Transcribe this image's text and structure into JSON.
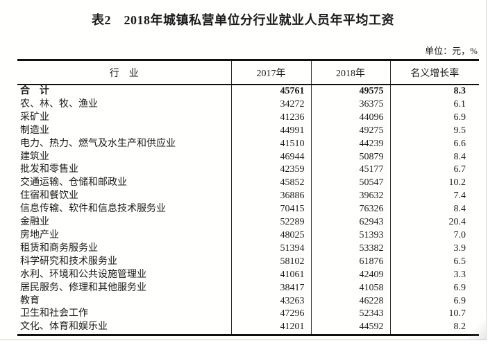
{
  "page": {
    "title": "表2　2018年城镇私营单位分行业就业人员年平均工资",
    "unit_note": "单位：元，%"
  },
  "table": {
    "headers": {
      "industry": "行　业",
      "y2017": "2017年",
      "y2018": "2018年",
      "growth": "名义增长率"
    },
    "bold_row_index": 0,
    "rows": [
      [
        "合　计",
        "45761",
        "49575",
        "8.3"
      ],
      [
        "农、林、牧、渔业",
        "34272",
        "36375",
        "6.1"
      ],
      [
        "采矿业",
        "41236",
        "44096",
        "6.9"
      ],
      [
        "制造业",
        "44991",
        "49275",
        "9.5"
      ],
      [
        "电力、热力、燃气及水生产和供应业",
        "41510",
        "44239",
        "6.6"
      ],
      [
        "建筑业",
        "46944",
        "50879",
        "8.4"
      ],
      [
        "批发和零售业",
        "42359",
        "45177",
        "6.7"
      ],
      [
        "交通运输、仓储和邮政业",
        "45852",
        "50547",
        "10.2"
      ],
      [
        "住宿和餐饮业",
        "36886",
        "39632",
        "7.4"
      ],
      [
        "信息传输、软件和信息技术服务业",
        "70415",
        "76326",
        "8.4"
      ],
      [
        "金融业",
        "52289",
        "62943",
        "20.4"
      ],
      [
        "房地产业",
        "48025",
        "51393",
        "7.0"
      ],
      [
        "租赁和商务服务业",
        "51394",
        "53382",
        "3.9"
      ],
      [
        "科学研究和技术服务业",
        "58102",
        "61876",
        "6.5"
      ],
      [
        "水利、环境和公共设施管理业",
        "41061",
        "42409",
        "3.3"
      ],
      [
        "居民服务、修理和其他服务业",
        "38417",
        "41058",
        "6.9"
      ],
      [
        "教育",
        "43263",
        "46228",
        "6.9"
      ],
      [
        "卫生和社会工作",
        "47296",
        "52343",
        "10.7"
      ],
      [
        "文化、体育和娱乐业",
        "41201",
        "44592",
        "8.2"
      ]
    ]
  }
}
